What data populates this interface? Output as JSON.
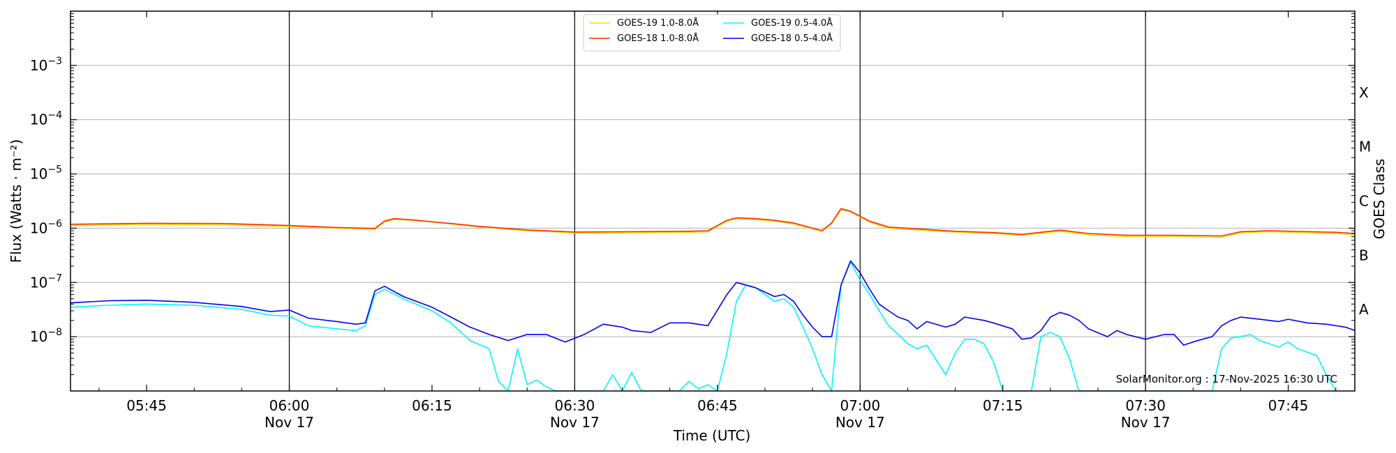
{
  "chart_data": {
    "type": "line",
    "xlabel": "Time (UTC)",
    "ylabel": "Flux (Watts · m⁻²)",
    "y2label": "GOES Class",
    "y_scale": "log",
    "ylim": [
      "1e-9",
      "1e-2"
    ],
    "xlim": [
      "2025-11-17 05:37",
      "2025-11-17 07:52"
    ],
    "grid": "horizontal at decades",
    "legend_placement": "top-center, two columns",
    "credit": "SolarMonitor.org : 17-Nov-2025 16:30 UTC",
    "y_ticks": [
      {
        "value": "1e-8",
        "base": "10",
        "exp": "−8"
      },
      {
        "value": "1e-7",
        "base": "10",
        "exp": "−7"
      },
      {
        "value": "1e-6",
        "base": "10",
        "exp": "−6"
      },
      {
        "value": "1e-5",
        "base": "10",
        "exp": "−5"
      },
      {
        "value": "1e-4",
        "base": "10",
        "exp": "−4"
      },
      {
        "value": "1e-3",
        "base": "10",
        "exp": "−3"
      }
    ],
    "classes": [
      {
        "label": "A",
        "value": "1e-8"
      },
      {
        "label": "B",
        "value": "1e-7"
      },
      {
        "label": "C",
        "value": "1e-6"
      },
      {
        "label": "M",
        "value": "1e-5"
      },
      {
        "label": "X",
        "value": "1e-4"
      }
    ],
    "x_ticks": [
      {
        "time": "05:45",
        "line1": "05:45",
        "line2": ""
      },
      {
        "time": "06:00",
        "line1": "06:00",
        "line2": "Nov 17"
      },
      {
        "time": "06:15",
        "line1": "06:15",
        "line2": ""
      },
      {
        "time": "06:30",
        "line1": "06:30",
        "line2": "Nov 17"
      },
      {
        "time": "06:45",
        "line1": "06:45",
        "line2": ""
      },
      {
        "time": "07:00",
        "line1": "07:00",
        "line2": "Nov 17"
      },
      {
        "time": "07:15",
        "line1": "07:15",
        "line2": ""
      },
      {
        "time": "07:30",
        "line1": "07:30",
        "line2": "Nov 17"
      },
      {
        "time": "07:45",
        "line1": "07:45",
        "line2": ""
      }
    ],
    "vlines": [
      "06:00",
      "06:30",
      "07:00",
      "07:30"
    ],
    "series": [
      {
        "name": "GOES-19 1.0-8.0Å",
        "color": "#ffd700",
        "points": [
          [
            "05:37",
            "1.12e-6"
          ],
          [
            "05:45",
            "1.18e-6"
          ],
          [
            "05:53",
            "1.15e-6"
          ],
          [
            "06:00",
            "1.08e-6"
          ],
          [
            "06:05",
            "1.0e-6"
          ],
          [
            "06:09",
            "9.6e-7"
          ],
          [
            "06:10",
            "1.3e-6"
          ],
          [
            "06:11",
            "1.45e-6"
          ],
          [
            "06:13",
            "1.4e-6"
          ],
          [
            "06:17",
            "1.2e-6"
          ],
          [
            "06:20",
            "1.05e-6"
          ],
          [
            "06:25",
            "9.0e-7"
          ],
          [
            "06:30",
            "8.2e-7"
          ],
          [
            "06:35",
            "8.2e-7"
          ],
          [
            "06:42",
            "8.4e-7"
          ],
          [
            "06:44",
            "8.6e-7"
          ],
          [
            "06:46",
            "1.35e-6"
          ],
          [
            "06:47",
            "1.5e-6"
          ],
          [
            "06:49",
            "1.45e-6"
          ],
          [
            "06:51",
            "1.35e-6"
          ],
          [
            "06:53",
            "1.2e-6"
          ],
          [
            "06:56",
            "8.8e-7"
          ],
          [
            "06:57",
            "1.2e-6"
          ],
          [
            "06:58",
            "2.2e-6"
          ],
          [
            "06:59",
            "2.0e-6"
          ],
          [
            "07:01",
            "1.3e-6"
          ],
          [
            "07:03",
            "1.0e-6"
          ],
          [
            "07:10",
            "8.5e-7"
          ],
          [
            "07:14",
            "8.0e-7"
          ],
          [
            "07:17",
            "7.4e-7"
          ],
          [
            "07:21",
            "8.8e-7"
          ],
          [
            "07:24",
            "7.6e-7"
          ],
          [
            "07:28",
            "7.0e-7"
          ],
          [
            "07:33",
            "7.0e-7"
          ],
          [
            "07:38",
            "6.8e-7"
          ],
          [
            "07:40",
            "8.2e-7"
          ],
          [
            "07:43",
            "8.6e-7"
          ],
          [
            "07:50",
            "8.0e-7"
          ],
          [
            "07:52",
            "7.7e-7"
          ]
        ]
      },
      {
        "name": "GOES-18 1.0-8.0Å",
        "color": "#ff2d00",
        "points": [
          [
            "05:37",
            "1.18e-6"
          ],
          [
            "05:45",
            "1.23e-6"
          ],
          [
            "05:53",
            "1.22e-6"
          ],
          [
            "06:00",
            "1.12e-6"
          ],
          [
            "06:05",
            "1.03e-6"
          ],
          [
            "06:09",
            "9.9e-7"
          ],
          [
            "06:10",
            "1.35e-6"
          ],
          [
            "06:11",
            "1.5e-6"
          ],
          [
            "06:13",
            "1.42e-6"
          ],
          [
            "06:17",
            "1.22e-6"
          ],
          [
            "06:20",
            "1.08e-6"
          ],
          [
            "06:25",
            "9.3e-7"
          ],
          [
            "06:30",
            "8.5e-7"
          ],
          [
            "06:35",
            "8.6e-7"
          ],
          [
            "06:42",
            "8.8e-7"
          ],
          [
            "06:44",
            "9.0e-7"
          ],
          [
            "06:46",
            "1.4e-6"
          ],
          [
            "06:47",
            "1.55e-6"
          ],
          [
            "06:49",
            "1.5e-6"
          ],
          [
            "06:51",
            "1.4e-6"
          ],
          [
            "06:53",
            "1.25e-6"
          ],
          [
            "06:56",
            "9.0e-7"
          ],
          [
            "06:57",
            "1.25e-6"
          ],
          [
            "06:58",
            "2.3e-6"
          ],
          [
            "06:59",
            "2.05e-6"
          ],
          [
            "07:01",
            "1.35e-6"
          ],
          [
            "07:03",
            "1.05e-6"
          ],
          [
            "07:10",
            "8.8e-7"
          ],
          [
            "07:14",
            "8.3e-7"
          ],
          [
            "07:17",
            "7.7e-7"
          ],
          [
            "07:21",
            "9.2e-7"
          ],
          [
            "07:24",
            "8.0e-7"
          ],
          [
            "07:28",
            "7.4e-7"
          ],
          [
            "07:33",
            "7.4e-7"
          ],
          [
            "07:38",
            "7.2e-7"
          ],
          [
            "07:40",
            "8.6e-7"
          ],
          [
            "07:43",
            "9.0e-7"
          ],
          [
            "07:50",
            "8.4e-7"
          ],
          [
            "07:52",
            "8.0e-7"
          ]
        ]
      },
      {
        "name": "GOES-19 0.5-4.0Å",
        "color": "#00f5ff",
        "points": [
          [
            "05:37",
            "3.5e-8"
          ],
          [
            "05:41",
            "3.8e-8"
          ],
          [
            "05:45",
            "4.0e-8"
          ],
          [
            "05:50",
            "3.8e-8"
          ],
          [
            "05:55",
            "3.2e-8"
          ],
          [
            "05:58",
            "2.5e-8"
          ],
          [
            "06:00",
            "2.4e-8"
          ],
          [
            "06:02",
            "1.6e-8"
          ],
          [
            "06:05",
            "1.4e-8"
          ],
          [
            "06:07",
            "1.3e-8"
          ],
          [
            "06:08",
            "1.6e-8"
          ],
          [
            "06:09",
            "6.0e-8"
          ],
          [
            "06:10",
            "7.5e-8"
          ],
          [
            "06:12",
            "5.0e-8"
          ],
          [
            "06:15",
            "3.0e-8"
          ],
          [
            "06:17",
            "1.8e-8"
          ],
          [
            "06:19",
            "8.5e-9"
          ],
          [
            "06:21",
            "6.0e-9"
          ],
          [
            "06:22",
            "1.5e-9"
          ],
          [
            "06:23",
            "1.0e-9"
          ],
          [
            "06:24",
            "6.0e-9"
          ],
          [
            "06:25",
            "1.3e-9"
          ],
          [
            "06:26",
            "1.6e-9"
          ],
          [
            "06:27",
            "1.2e-9"
          ],
          [
            "06:28",
            "1.0e-9"
          ],
          [
            "06:33",
            "1.0e-9"
          ],
          [
            "06:34",
            "2.0e-9"
          ],
          [
            "06:35",
            "1.0e-9"
          ],
          [
            "06:36",
            "2.2e-9"
          ],
          [
            "06:37",
            "1.0e-9"
          ],
          [
            "06:41",
            "1.0e-9"
          ],
          [
            "06:42",
            "1.5e-9"
          ],
          [
            "06:43",
            "1.1e-9"
          ],
          [
            "06:44",
            "1.3e-9"
          ],
          [
            "06:45",
            "1.0e-9"
          ],
          [
            "06:46",
            "5.0e-9"
          ],
          [
            "06:47",
            "4.5e-8"
          ],
          [
            "06:48",
            "9.0e-8"
          ],
          [
            "06:49",
            "8.0e-8"
          ],
          [
            "06:51",
            "4.5e-8"
          ],
          [
            "06:52",
            "5.0e-8"
          ],
          [
            "06:53",
            "3.5e-8"
          ],
          [
            "06:54",
            "1.5e-8"
          ],
          [
            "06:55",
            "6.0e-9"
          ],
          [
            "06:56",
            "2.0e-9"
          ],
          [
            "06:57",
            "1.0e-9"
          ],
          [
            "06:58",
            "9.0e-8"
          ],
          [
            "06:59",
            "2.4e-7"
          ],
          [
            "07:00",
            "1.1e-7"
          ],
          [
            "07:01",
            "6.0e-8"
          ],
          [
            "07:02",
            "3.0e-8"
          ],
          [
            "07:03",
            "1.6e-8"
          ],
          [
            "07:04",
            "1.1e-8"
          ],
          [
            "07:05",
            "7.5e-9"
          ],
          [
            "07:06",
            "6.0e-9"
          ],
          [
            "07:07",
            "7.0e-9"
          ],
          [
            "07:09",
            "2.0e-9"
          ],
          [
            "07:10",
            "5.0e-9"
          ],
          [
            "07:11",
            "9.0e-9"
          ],
          [
            "07:12",
            "9.0e-9"
          ],
          [
            "07:13",
            "7.5e-9"
          ],
          [
            "07:14",
            "3.5e-9"
          ],
          [
            "07:15",
            "1.0e-9"
          ],
          [
            "07:18",
            "1.0e-9"
          ],
          [
            "07:19",
            "1.0e-8"
          ],
          [
            "07:20",
            "1.2e-8"
          ],
          [
            "07:21",
            "1.0e-8"
          ],
          [
            "07:22",
            "4.0e-9"
          ],
          [
            "07:23",
            "1.0e-9"
          ],
          [
            "07:37",
            "1.0e-9"
          ],
          [
            "07:38",
            "6.0e-9"
          ],
          [
            "07:39",
            "9.5e-9"
          ],
          [
            "07:40",
            "1.0e-8"
          ],
          [
            "07:41",
            "1.1e-8"
          ],
          [
            "07:42",
            "8.5e-9"
          ],
          [
            "07:44",
            "6.5e-9"
          ],
          [
            "07:45",
            "8.0e-9"
          ],
          [
            "07:46",
            "6.0e-9"
          ],
          [
            "07:48",
            "4.5e-9"
          ],
          [
            "07:49",
            "2.0e-9"
          ],
          [
            "07:50",
            "1.0e-9"
          ]
        ]
      },
      {
        "name": "GOES-18 0.5-4.0Å",
        "color": "#0000ee",
        "points": [
          [
            "05:37",
            "4.2e-8"
          ],
          [
            "05:41",
            "4.6e-8"
          ],
          [
            "05:45",
            "4.7e-8"
          ],
          [
            "05:50",
            "4.3e-8"
          ],
          [
            "05:55",
            "3.6e-8"
          ],
          [
            "05:58",
            "2.9e-8"
          ],
          [
            "06:00",
            "3.1e-8"
          ],
          [
            "06:02",
            "2.2e-8"
          ],
          [
            "06:05",
            "1.9e-8"
          ],
          [
            "06:07",
            "1.7e-8"
          ],
          [
            "06:08",
            "1.8e-8"
          ],
          [
            "06:09",
            "7.0e-8"
          ],
          [
            "06:10",
            "8.5e-8"
          ],
          [
            "06:12",
            "5.5e-8"
          ],
          [
            "06:15",
            "3.5e-8"
          ],
          [
            "06:17",
            "2.3e-8"
          ],
          [
            "06:19",
            "1.5e-8"
          ],
          [
            "06:21",
            "1.1e-8"
          ],
          [
            "06:23",
            "8.5e-9"
          ],
          [
            "06:25",
            "1.1e-8"
          ],
          [
            "06:27",
            "1.1e-8"
          ],
          [
            "06:29",
            "8.0e-9"
          ],
          [
            "06:31",
            "1.1e-8"
          ],
          [
            "06:33",
            "1.7e-8"
          ],
          [
            "06:35",
            "1.5e-8"
          ],
          [
            "06:36",
            "1.3e-8"
          ],
          [
            "06:38",
            "1.2e-8"
          ],
          [
            "06:40",
            "1.8e-8"
          ],
          [
            "06:42",
            "1.8e-8"
          ],
          [
            "06:44",
            "1.6e-8"
          ],
          [
            "06:46",
            "6.0e-8"
          ],
          [
            "06:47",
            "1.0e-7"
          ],
          [
            "06:49",
            "8.0e-8"
          ],
          [
            "06:51",
            "5.5e-8"
          ],
          [
            "06:52",
            "6.0e-8"
          ],
          [
            "06:53",
            "4.5e-8"
          ],
          [
            "06:54",
            "2.5e-8"
          ],
          [
            "06:55",
            "1.5e-8"
          ],
          [
            "06:56",
            "1.0e-8"
          ],
          [
            "06:57",
            "1.0e-8"
          ],
          [
            "06:58",
            "9.0e-8"
          ],
          [
            "06:59",
            "2.5e-7"
          ],
          [
            "07:00",
            "1.5e-7"
          ],
          [
            "07:01",
            "7.5e-8"
          ],
          [
            "07:02",
            "4.0e-8"
          ],
          [
            "07:03",
            "3.0e-8"
          ],
          [
            "07:04",
            "2.3e-8"
          ],
          [
            "07:05",
            "2.0e-8"
          ],
          [
            "07:06",
            "1.4e-8"
          ],
          [
            "07:07",
            "1.9e-8"
          ],
          [
            "07:09",
            "1.5e-8"
          ],
          [
            "07:10",
            "1.7e-8"
          ],
          [
            "07:11",
            "2.3e-8"
          ],
          [
            "07:13",
            "2.0e-8"
          ],
          [
            "07:14",
            "1.8e-8"
          ],
          [
            "07:16",
            "1.4e-8"
          ],
          [
            "07:17",
            "9.0e-9"
          ],
          [
            "07:18",
            "9.5e-9"
          ],
          [
            "07:19",
            "1.3e-8"
          ],
          [
            "07:20",
            "2.3e-8"
          ],
          [
            "07:21",
            "2.8e-8"
          ],
          [
            "07:22",
            "2.5e-8"
          ],
          [
            "07:23",
            "2.0e-8"
          ],
          [
            "07:24",
            "1.4e-8"
          ],
          [
            "07:26",
            "1.0e-8"
          ],
          [
            "07:27",
            "1.3e-8"
          ],
          [
            "07:28",
            "1.1e-8"
          ],
          [
            "07:30",
            "9.0e-9"
          ],
          [
            "07:32",
            "1.1e-8"
          ],
          [
            "07:33",
            "1.1e-8"
          ],
          [
            "07:34",
            "7.0e-9"
          ],
          [
            "07:35",
            "8.0e-9"
          ],
          [
            "07:36",
            "9.0e-9"
          ],
          [
            "07:37",
            "1.0e-8"
          ],
          [
            "07:38",
            "1.6e-8"
          ],
          [
            "07:39",
            "2.0e-8"
          ],
          [
            "07:40",
            "2.3e-8"
          ],
          [
            "07:42",
            "2.1e-8"
          ],
          [
            "07:44",
            "1.9e-8"
          ],
          [
            "07:45",
            "2.1e-8"
          ],
          [
            "07:47",
            "1.8e-8"
          ],
          [
            "07:49",
            "1.7e-8"
          ],
          [
            "07:51",
            "1.5e-8"
          ],
          [
            "07:52",
            "1.3e-8"
          ]
        ]
      }
    ]
  }
}
